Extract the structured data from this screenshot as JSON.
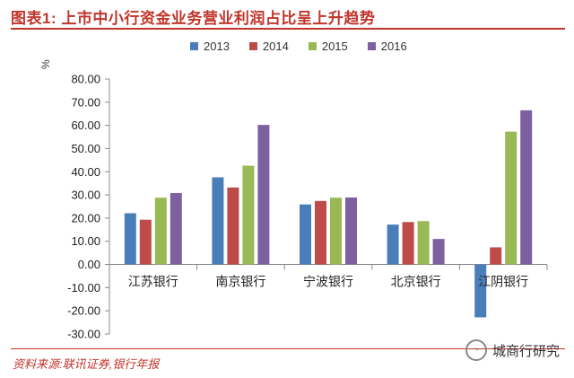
{
  "title": "图表1:  上市中小行资金业务营业利润占比呈上升趋势",
  "source": "资料来源:联讯证券,银行年报",
  "watermark": {
    "text": "城商行研究",
    "icon": "wechat-icon"
  },
  "chart_data": {
    "type": "bar",
    "ylabel": "%",
    "categories": [
      "江苏银行",
      "南京银行",
      "宁波银行",
      "北京银行",
      "江阴银行"
    ],
    "series": [
      {
        "name": "2013",
        "color": "#4a7ebb",
        "values": [
          22.1,
          37.6,
          25.9,
          17.2,
          -22.8
        ]
      },
      {
        "name": "2014",
        "color": "#be4b48",
        "values": [
          19.3,
          33.2,
          27.4,
          18.3,
          7.4
        ]
      },
      {
        "name": "2015",
        "color": "#98b954",
        "values": [
          28.8,
          42.6,
          28.8,
          18.7,
          57.3
        ]
      },
      {
        "name": "2016",
        "color": "#7d60a0",
        "values": [
          30.8,
          60.2,
          28.9,
          11.0,
          66.5
        ]
      }
    ],
    "ylim": [
      -30,
      80
    ],
    "yticks": [
      80,
      70,
      60,
      50,
      40,
      30,
      20,
      10,
      0,
      -10,
      -20,
      -30
    ],
    "ytick_labels": [
      "80.00",
      "70.00",
      "60.00",
      "50.00",
      "40.00",
      "30.00",
      "20.00",
      "10.00",
      "0.00",
      "-10.00",
      "-20.00",
      "-30.00"
    ],
    "grid": false,
    "legend": "top-center"
  }
}
